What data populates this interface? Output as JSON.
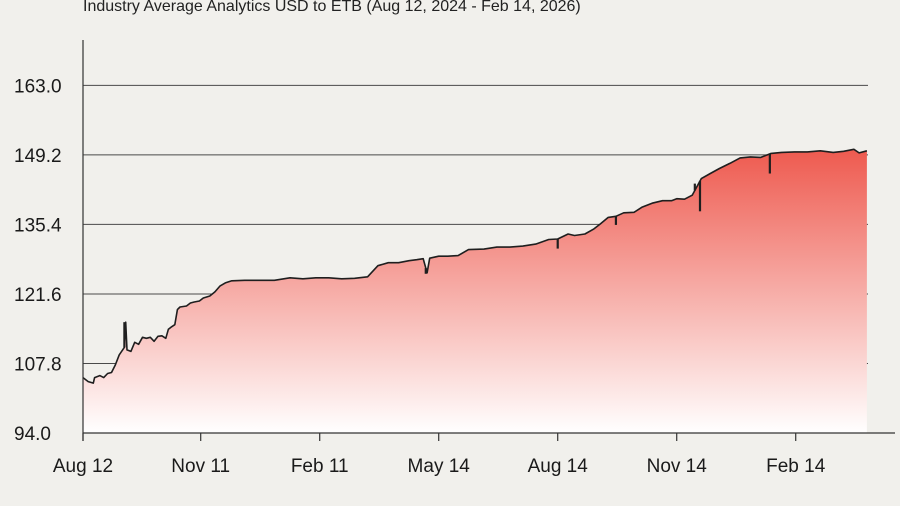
{
  "chart_data": {
    "type": "area",
    "title": "Industry Average Analytics  USD to ETB (Aug 12, 2024 - Feb 14,  2026)",
    "xlabel": "",
    "ylabel": "",
    "ylim": [
      94.0,
      172.0
    ],
    "yticks": [
      "94.0",
      "107.8",
      "121.6",
      "135.4",
      "149.2",
      "163.0"
    ],
    "xticks": [
      "Aug 12",
      "Nov 11",
      "Feb 11",
      "May 14",
      "Aug 14",
      "Nov 14",
      "Feb 14"
    ],
    "xtick_days": [
      0,
      91,
      183,
      275,
      367,
      459,
      551
    ],
    "grid": true,
    "legend": "none",
    "colors": {
      "fill_top": "#ee5a4f",
      "fill_bottom": "#ffffff",
      "line": "#1f1f1f"
    },
    "series": [
      {
        "points": [
          [
            0,
            105.0
          ],
          [
            4,
            104.2
          ],
          [
            8,
            103.9
          ],
          [
            9,
            105.0
          ],
          [
            13,
            105.4
          ],
          [
            16,
            105.0
          ],
          [
            19,
            105.8
          ],
          [
            22,
            106.0
          ],
          [
            25,
            107.5
          ],
          [
            28,
            109.5
          ],
          [
            32,
            111.0
          ],
          [
            33,
            116.0
          ],
          [
            34,
            110.5
          ],
          [
            37,
            110.2
          ],
          [
            40,
            112.0
          ],
          [
            43,
            111.6
          ],
          [
            46,
            113.0
          ],
          [
            49,
            112.8
          ],
          [
            52,
            113.0
          ],
          [
            55,
            112.2
          ],
          [
            58,
            113.2
          ],
          [
            61,
            113.3
          ],
          [
            64,
            112.8
          ],
          [
            66,
            114.6
          ],
          [
            68,
            115.0
          ],
          [
            71,
            115.5
          ],
          [
            73,
            118.5
          ],
          [
            75,
            119.0
          ],
          [
            80,
            119.2
          ],
          [
            83,
            119.8
          ],
          [
            86,
            120.0
          ],
          [
            90,
            120.2
          ],
          [
            93,
            120.8
          ],
          [
            98,
            121.2
          ],
          [
            102,
            122.0
          ],
          [
            106,
            123.2
          ],
          [
            110,
            123.8
          ],
          [
            115,
            124.2
          ],
          [
            125,
            124.3
          ],
          [
            135,
            124.3
          ],
          [
            148,
            124.3
          ],
          [
            160,
            124.8
          ],
          [
            170,
            124.6
          ],
          [
            180,
            124.8
          ],
          [
            190,
            124.8
          ],
          [
            200,
            124.6
          ],
          [
            210,
            124.7
          ],
          [
            220,
            125.0
          ],
          [
            228,
            127.2
          ],
          [
            236,
            127.8
          ],
          [
            244,
            127.8
          ],
          [
            252,
            128.2
          ],
          [
            258,
            128.4
          ],
          [
            263,
            128.6
          ],
          [
            266,
            125.8
          ],
          [
            268,
            128.7
          ],
          [
            275,
            129.1
          ],
          [
            282,
            129.1
          ],
          [
            290,
            129.2
          ],
          [
            298,
            130.4
          ],
          [
            310,
            130.5
          ],
          [
            320,
            130.9
          ],
          [
            330,
            130.9
          ],
          [
            340,
            131.1
          ],
          [
            350,
            131.5
          ],
          [
            360,
            132.4
          ],
          [
            367,
            132.5
          ],
          [
            375,
            133.5
          ],
          [
            380,
            133.2
          ],
          [
            388,
            133.5
          ],
          [
            395,
            134.5
          ],
          [
            400,
            135.5
          ],
          [
            406,
            136.8
          ],
          [
            412,
            137.0
          ],
          [
            418,
            137.7
          ],
          [
            426,
            137.8
          ],
          [
            432,
            138.8
          ],
          [
            440,
            139.6
          ],
          [
            448,
            140.1
          ],
          [
            455,
            140.1
          ],
          [
            459,
            140.5
          ],
          [
            465,
            140.4
          ],
          [
            471,
            141.2
          ],
          [
            478,
            144.5
          ],
          [
            485,
            145.5
          ],
          [
            492,
            146.5
          ],
          [
            500,
            147.5
          ],
          [
            508,
            148.6
          ],
          [
            516,
            148.8
          ],
          [
            524,
            148.7
          ],
          [
            532,
            149.5
          ],
          [
            540,
            149.7
          ],
          [
            550,
            149.8
          ],
          [
            560,
            149.8
          ],
          [
            570,
            150.0
          ],
          [
            580,
            149.7
          ],
          [
            588,
            149.9
          ],
          [
            596,
            150.3
          ],
          [
            600,
            149.6
          ],
          [
            606,
            150.0
          ]
        ],
        "spikes": [
          [
            32,
            116.0
          ],
          [
            265,
            125.6
          ],
          [
            367,
            130.6
          ],
          [
            412,
            135.3
          ],
          [
            473,
            143.5
          ],
          [
            477,
            138.0
          ],
          [
            531,
            145.5
          ]
        ]
      }
    ]
  }
}
